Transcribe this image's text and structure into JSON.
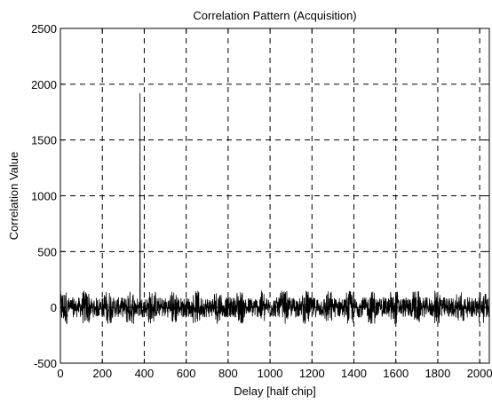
{
  "chart_data": {
    "type": "line",
    "title": "Correlation Pattern (Acquisition)",
    "xlabel": "Delay [half chip]",
    "ylabel": "Correlation Value",
    "xlim": [
      0,
      2046
    ],
    "ylim": [
      -500,
      2500
    ],
    "xticks": [
      0,
      200,
      400,
      600,
      800,
      1000,
      1200,
      1400,
      1600,
      1800,
      2000
    ],
    "yticks": [
      -500,
      0,
      500,
      1000,
      1500,
      2000,
      2500
    ],
    "grid": true,
    "grid_style": "dashed",
    "line_color": "#000000",
    "series": [
      {
        "noise_range": [
          -150,
          150
        ],
        "peak": {
          "x": 380,
          "y": 1920
        },
        "num_points": 2046
      }
    ]
  }
}
